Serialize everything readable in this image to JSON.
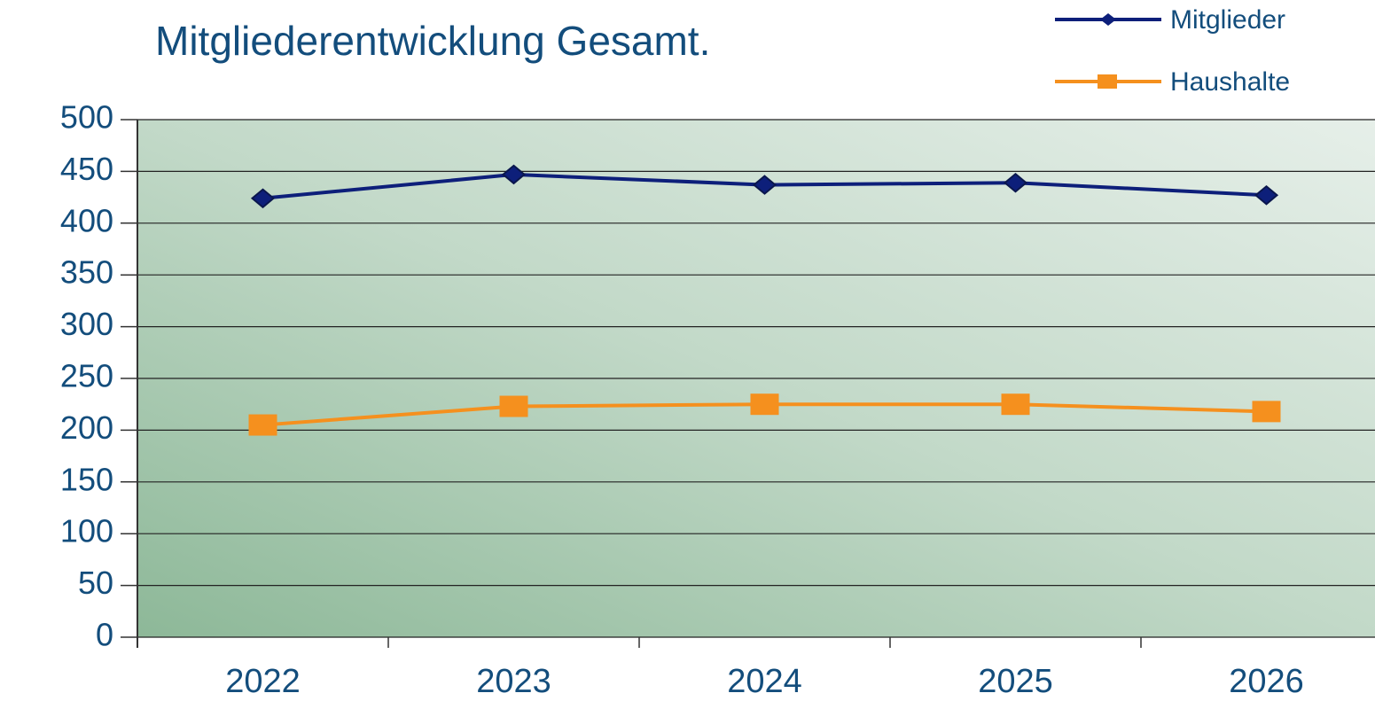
{
  "chart_data": {
    "type": "line",
    "title": "Mitgliederentwicklung Gesamt.",
    "categories": [
      "2022",
      "2023",
      "2024",
      "2025",
      "2026"
    ],
    "series": [
      {
        "name": "Mitglieder",
        "color": "#0d1f7a",
        "marker": "diamond",
        "values": [
          424,
          447,
          437,
          439,
          427
        ]
      },
      {
        "name": "Haushalte",
        "color": "#f5901e",
        "marker": "square",
        "values": [
          205,
          223,
          225,
          225,
          218
        ]
      }
    ],
    "ylim": [
      0,
      500
    ],
    "yticks": [
      0,
      50,
      100,
      150,
      200,
      250,
      300,
      350,
      400,
      450,
      500
    ],
    "grid": true,
    "legend": "top-right"
  }
}
